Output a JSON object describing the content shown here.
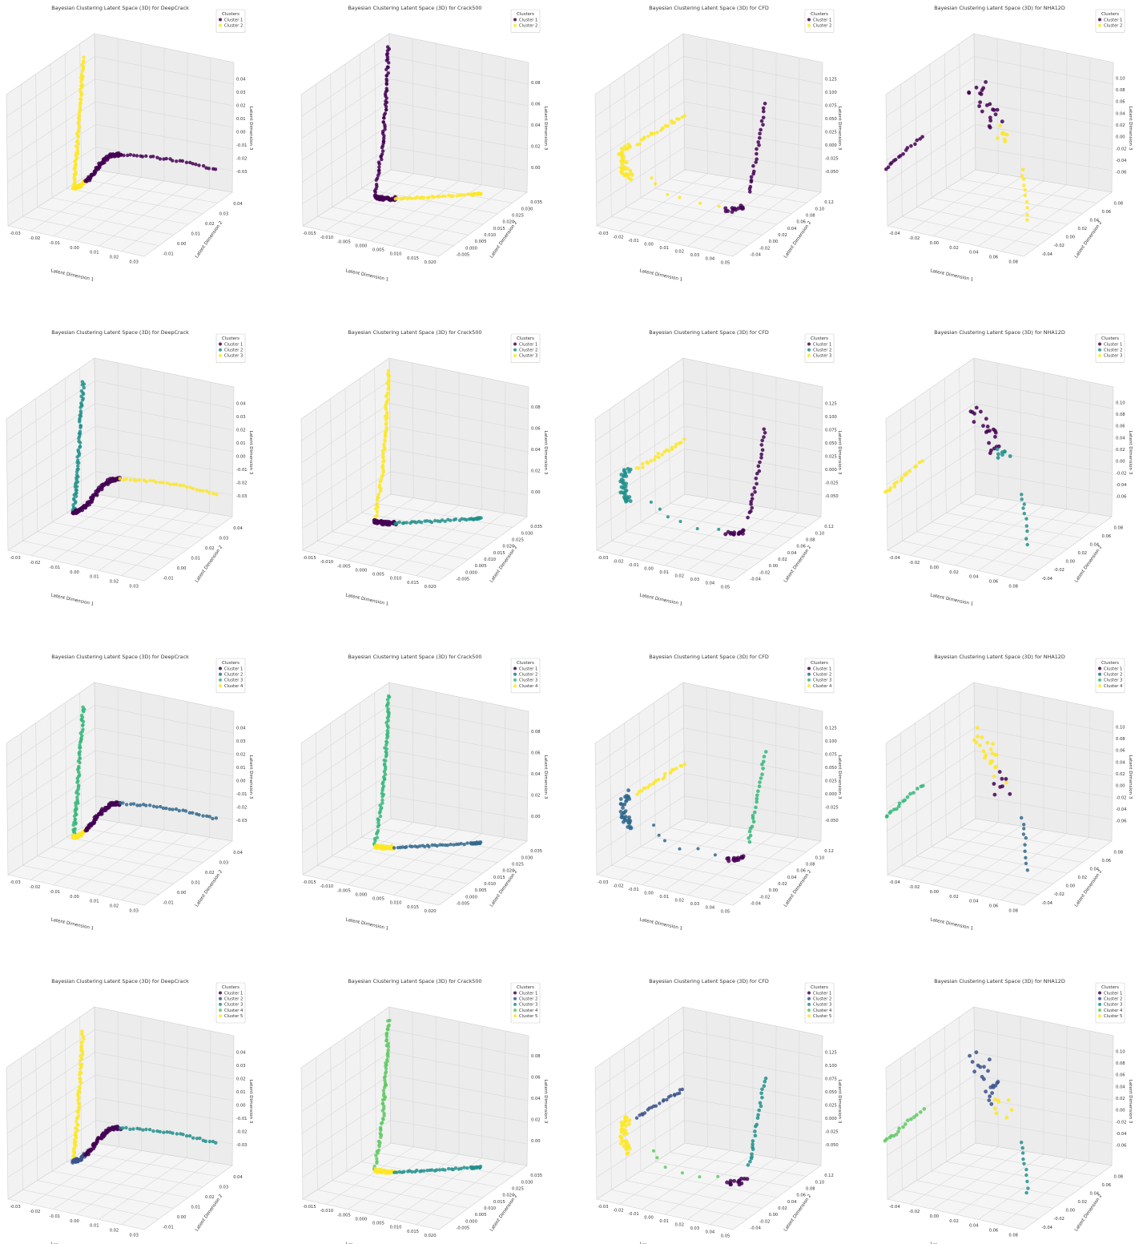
{
  "figure": {
    "rows": 4,
    "cols": 4
  },
  "palette": {
    "2": [
      "#440154",
      "#21918c"
    ],
    "3": [
      "#440154",
      "#21918c",
      "#fde725"
    ],
    "4": [
      "#440154",
      "#31688e",
      "#35b779",
      "#fde725"
    ],
    "5": [
      "#440154",
      "#3b528b",
      "#21918c",
      "#5ec962",
      "#fde725"
    ]
  },
  "datasets": {
    "DeepCrack": {
      "title": "Bayesian Clustering Latent Space (3D) for DeepCrack",
      "xlabel": "Latent Dimension 1",
      "ylabel": "Latent Dimension 2",
      "zlabel": "Latent Dimension 3",
      "xticks": [
        "-0.03",
        "-0.02",
        "-0.01",
        "0.00",
        "0.01",
        "0.02",
        "0.03"
      ],
      "yticks": [
        "-0.01",
        "0.00",
        "0.01",
        "0.02",
        "0.03",
        "0.04"
      ],
      "zticks": [
        "-0.03",
        "-0.02",
        "-0.01",
        "0.00",
        "0.01",
        "0.02",
        "0.03",
        "0.04"
      ],
      "xlim": [
        -0.03,
        0.03
      ],
      "ylim": [
        -0.01,
        0.04
      ],
      "zlim": [
        -0.03,
        0.04
      ]
    },
    "Crack500": {
      "title": "Bayesian Clustering Latent Space (3D) for Crack500",
      "xlabel": "Latent Dimension 1",
      "ylabel": "Latent Dimension 2",
      "zlabel": "Latent Dimension 3",
      "xticks": [
        "-0.015",
        "-0.010",
        "-0.005",
        "0.000",
        "0.005",
        "0.010",
        "0.015",
        "0.020"
      ],
      "yticks": [
        "-0.005",
        "0.000",
        "0.005",
        "0.010",
        "0.015",
        "0.020",
        "0.025",
        "0.030",
        "0.035"
      ],
      "zticks": [
        "0.00",
        "0.02",
        "0.04",
        "0.06",
        "0.08"
      ],
      "xlim": [
        -0.015,
        0.02
      ],
      "ylim": [
        -0.005,
        0.035
      ],
      "zlim": [
        -0.01,
        0.09
      ]
    },
    "CFD": {
      "title": "Bayesian Clustering Latent Space (3D) for CFD",
      "xlabel": "Latent Dimension 1",
      "ylabel": "Latent Dimension 2",
      "zlabel": "Latent Dimension 3",
      "xticks": [
        "-0.03",
        "-0.02",
        "-0.01",
        "0.00",
        "0.01",
        "0.02",
        "0.03",
        "0.04",
        "0.05"
      ],
      "yticks": [
        "-0.04",
        "-0.02",
        "0.00",
        "0.02",
        "0.04",
        "0.06",
        "0.08",
        "0.10",
        "0.12"
      ],
      "zticks": [
        "-0.050",
        "-0.025",
        "0.000",
        "0.025",
        "0.050",
        "0.075",
        "0.100",
        "0.125"
      ],
      "xlim": [
        -0.03,
        0.05
      ],
      "ylim": [
        -0.04,
        0.12
      ],
      "zlim": [
        -0.05,
        0.125
      ]
    },
    "NHA12D": {
      "title": "Bayesian Clustering Latent Space (3D) for NHA12D",
      "xlabel": "Latent Dimension 1",
      "ylabel": "Latent Dimension 2",
      "zlabel": "Latent Dimension 3",
      "xticks": [
        "-0.04",
        "-0.02",
        "0.00",
        "0.02",
        "0.04",
        "0.06",
        "0.08"
      ],
      "yticks": [
        "-0.04",
        "-0.02",
        "0.00",
        "0.02",
        "0.04",
        "0.06",
        "0.08"
      ],
      "zticks": [
        "-0.06",
        "-0.04",
        "-0.02",
        "0.00",
        "0.02",
        "0.04",
        "0.06",
        "0.08",
        "0.10"
      ],
      "xlim": [
        -0.04,
        0.08
      ],
      "ylim": [
        -0.04,
        0.08
      ],
      "zlim": [
        -0.06,
        0.1
      ]
    }
  },
  "dataset_order": [
    "DeepCrack",
    "Crack500",
    "CFD",
    "NHA12D"
  ],
  "legend_title": "Clusters",
  "cluster_counts": [
    2,
    3,
    4,
    5
  ],
  "cluster_labels": [
    "Cluster 1",
    "Cluster 2",
    "Cluster 3",
    "Cluster 4",
    "Cluster 5"
  ],
  "chart_data": [
    {
      "type": "scatter",
      "dataset": "DeepCrack",
      "title": "Bayesian Clustering Latent Space (3D) for DeepCrack",
      "xlabel": "Latent Dimension 1",
      "ylabel": "Latent Dimension 2",
      "zlabel": "Latent Dimension 3",
      "xlim": [
        -0.03,
        0.03
      ],
      "ylim": [
        -0.01,
        0.04
      ],
      "zlim": [
        -0.03,
        0.04
      ],
      "series": [
        {
          "name": "Cluster 1",
          "points": [
            [
              -0.005,
              0.0,
              -0.025
            ],
            [
              0.0,
              0.005,
              -0.018
            ],
            [
              0.005,
              0.01,
              -0.014
            ],
            [
              0.01,
              0.018,
              -0.012
            ],
            [
              0.015,
              0.025,
              -0.015
            ],
            [
              0.02,
              0.03,
              -0.02
            ],
            [
              0.025,
              0.035,
              -0.024
            ]
          ]
        },
        {
          "name": "Cluster 2",
          "points": [
            [
              -0.02,
              -0.005,
              -0.025
            ],
            [
              -0.019,
              -0.003,
              -0.01
            ],
            [
              -0.018,
              -0.002,
              0.01
            ],
            [
              -0.017,
              0.0,
              0.03
            ],
            [
              -0.016,
              0.002,
              0.04
            ]
          ]
        }
      ]
    },
    {
      "type": "scatter",
      "dataset": "Crack500",
      "title": "Bayesian Clustering Latent Space (3D) for Crack500",
      "xlabel": "Latent Dimension 1",
      "ylabel": "Latent Dimension 2",
      "zlabel": "Latent Dimension 3",
      "xlim": [
        -0.015,
        0.02
      ],
      "ylim": [
        -0.005,
        0.035
      ],
      "zlim": [
        -0.01,
        0.09
      ],
      "series": [
        {
          "name": "Cluster 1",
          "points": [
            [
              -0.005,
              0.0,
              0.0
            ],
            [
              -0.004,
              0.001,
              0.02
            ],
            [
              -0.003,
              0.002,
              0.05
            ],
            [
              -0.002,
              0.003,
              0.08
            ],
            [
              -0.001,
              0.004,
              0.09
            ]
          ]
        },
        {
          "name": "Cluster 2",
          "points": [
            [
              0.0,
              0.005,
              -0.005
            ],
            [
              0.005,
              0.012,
              -0.005
            ],
            [
              0.01,
              0.02,
              -0.005
            ],
            [
              0.015,
              0.028,
              -0.005
            ],
            [
              0.02,
              0.033,
              -0.005
            ]
          ]
        }
      ]
    },
    {
      "type": "scatter",
      "dataset": "CFD",
      "title": "Bayesian Clustering Latent Space (3D) for CFD",
      "xlabel": "Latent Dimension 1",
      "ylabel": "Latent Dimension 2",
      "zlabel": "Latent Dimension 3",
      "xlim": [
        -0.03,
        0.05
      ],
      "ylim": [
        -0.04,
        0.12
      ],
      "zlim": [
        -0.05,
        0.125
      ]
    },
    {
      "type": "scatter",
      "dataset": "NHA12D",
      "title": "Bayesian Clustering Latent Space (3D) for NHA12D",
      "xlabel": "Latent Dimension 1",
      "ylabel": "Latent Dimension 2",
      "zlabel": "Latent Dimension 3",
      "xlim": [
        -0.04,
        0.08
      ],
      "ylim": [
        -0.04,
        0.08
      ],
      "zlim": [
        -0.06,
        0.1
      ]
    }
  ]
}
